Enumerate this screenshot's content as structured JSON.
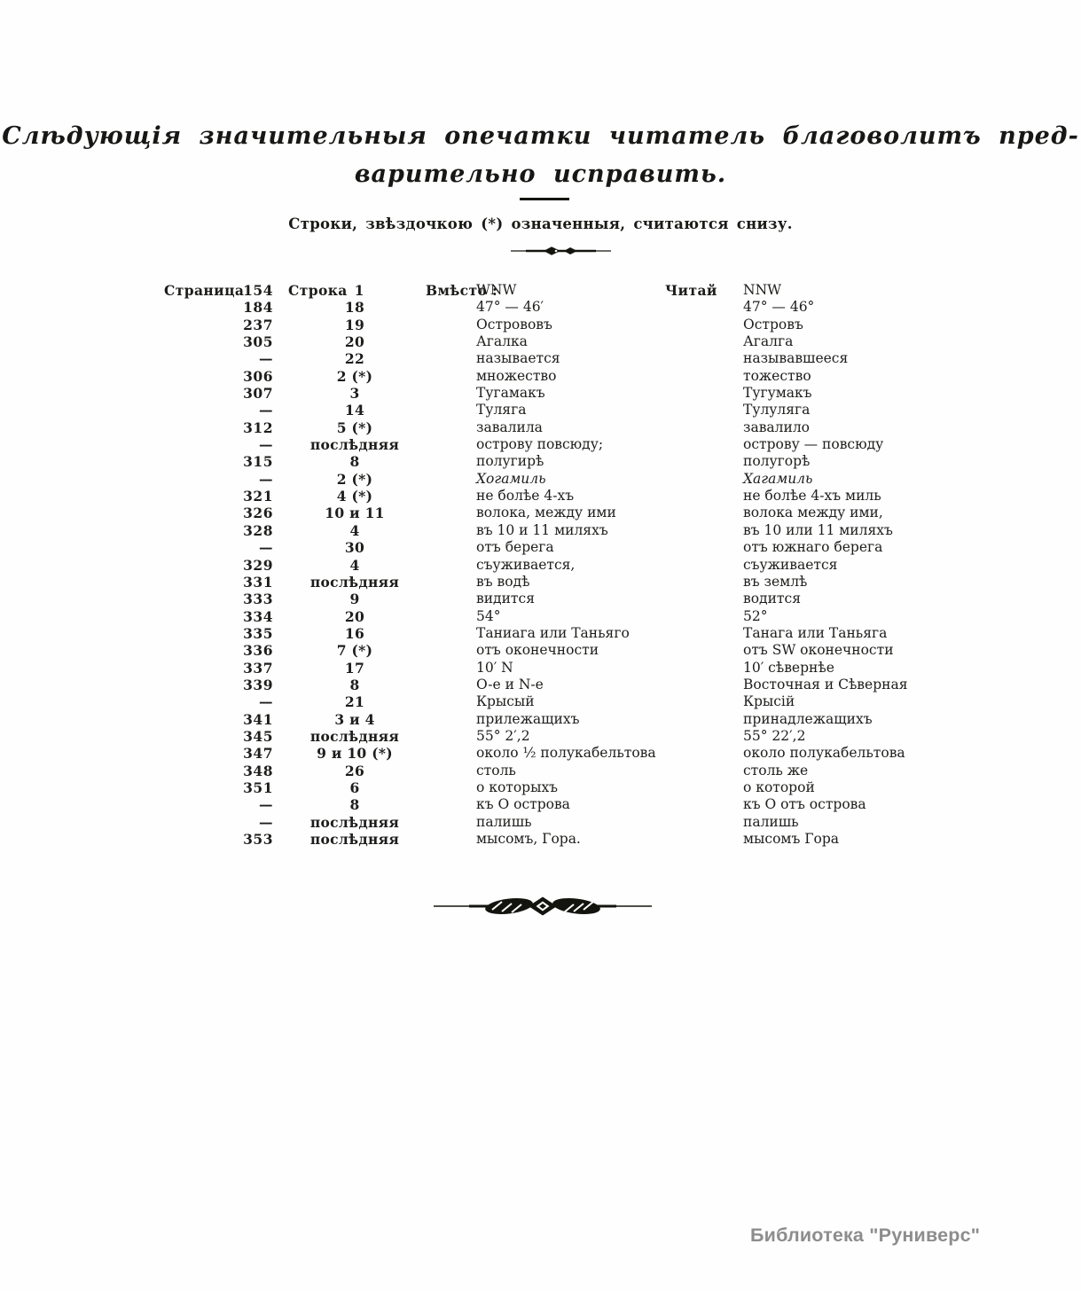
{
  "page": {
    "title_line1": "Слѣдующія значительныя опечатки читатель благоволитъ пред-",
    "title_line2": "варительно исправить.",
    "subtitle": "Строки, звѣздочкою (*) означенныя, считаются снизу.",
    "watermark": "Библиотека \"Руниверс\""
  },
  "ornaments": {
    "small_divider": "floral-rule-small",
    "large_divider": "floral-rule-large",
    "title_rule": "plain-short-rule"
  },
  "table": {
    "headers": {
      "page": "Страница",
      "line": "Строка",
      "instead": "Вмѣсто :",
      "read": "Читай"
    },
    "rows": [
      {
        "page": "154",
        "line": "1",
        "instead": "WNW",
        "read": "NNW"
      },
      {
        "page": "184",
        "line": "18",
        "instead": "47° — 46′",
        "read": "47° — 46°"
      },
      {
        "page": "237",
        "line": "19",
        "instead": "Острововъ",
        "read": "Островъ"
      },
      {
        "page": "305",
        "line": "20",
        "instead": "Агалка",
        "read": "Агалга"
      },
      {
        "page": "—",
        "line": "22",
        "instead": "называется",
        "read": "называвшееся"
      },
      {
        "page": "306",
        "line": "2 (*)",
        "instead": "множество",
        "read": "тожество"
      },
      {
        "page": "307",
        "line": "3",
        "instead": "Тугамакъ",
        "read": "Тугумакъ"
      },
      {
        "page": "—",
        "line": "14",
        "instead": "Туляга",
        "read": "Тулуляга"
      },
      {
        "page": "312",
        "line": "5 (*)",
        "instead": "завалила",
        "read": "завалило"
      },
      {
        "page": "—",
        "line": "послѣдняя",
        "instead": "острову повсюду;",
        "read": "острову — повсюду"
      },
      {
        "page": "315",
        "line": "8",
        "instead": "полугирѣ",
        "read": "полугорѣ"
      },
      {
        "page": "—",
        "line": "2 (*)",
        "instead": "Хогамиль",
        "read": "Хагамиль",
        "em": true
      },
      {
        "page": "321",
        "line": "4 (*)",
        "instead": "не болѣе 4-хъ",
        "read": "не болѣе 4-хъ миль"
      },
      {
        "page": "326",
        "line": "10 и 11",
        "instead": "волока, между ими",
        "read": "волока между ими,"
      },
      {
        "page": "328",
        "line": "4",
        "instead": "въ 10 и 11 миляхъ",
        "read": "въ 10 или 11 миляхъ"
      },
      {
        "page": "—",
        "line": "30",
        "instead": "отъ берега",
        "read": "отъ южнаго берега"
      },
      {
        "page": "329",
        "line": "4",
        "instead": "съуживается,",
        "read": "съуживается"
      },
      {
        "page": "331",
        "line": "послѣдняя",
        "instead": "въ водѣ",
        "read": "въ землѣ"
      },
      {
        "page": "333",
        "line": "9",
        "instead": "видится",
        "read": "водится"
      },
      {
        "page": "334",
        "line": "20",
        "instead": "54°",
        "read": "52°"
      },
      {
        "page": "335",
        "line": "16",
        "instead": "Таниага или Таньяго",
        "read": "Танага или Таньяга"
      },
      {
        "page": "336",
        "line": "7 (*)",
        "instead": "отъ оконечности",
        "read": "отъ SW оконечности"
      },
      {
        "page": "337",
        "line": "17",
        "instead": "10′ N",
        "read": "10′ сѣвернѣе"
      },
      {
        "page": "339",
        "line": "8",
        "instead": "O-е и N-е",
        "read": "Восточная и Сѣверная"
      },
      {
        "page": "—",
        "line": "21",
        "instead": "Крысый",
        "read": "Крысій"
      },
      {
        "page": "341",
        "line": "3 и 4",
        "instead": "прилежащихъ",
        "read": "принадлежащихъ"
      },
      {
        "page": "345",
        "line": "послѣдняя",
        "instead": "55° 2′,2",
        "read": "55° 22′,2"
      },
      {
        "page": "347",
        "line": "9 и 10 (*)",
        "instead": "около ½ полукабельтова",
        "read": "около полукабельтова"
      },
      {
        "page": "348",
        "line": "26",
        "instead": "столь",
        "read": "столь же"
      },
      {
        "page": "351",
        "line": "6",
        "instead": "о которыхъ",
        "read": "о которой"
      },
      {
        "page": "—",
        "line": "8",
        "instead": "къ О острова",
        "read": "къ О отъ острова"
      },
      {
        "page": "—",
        "line": "послѣдняя",
        "instead": "палишь",
        "read": "палишь"
      },
      {
        "page": "353",
        "line": "послѣдняя",
        "instead": "мысомъ, Гора.",
        "read": "мысомъ Гора"
      }
    ]
  }
}
